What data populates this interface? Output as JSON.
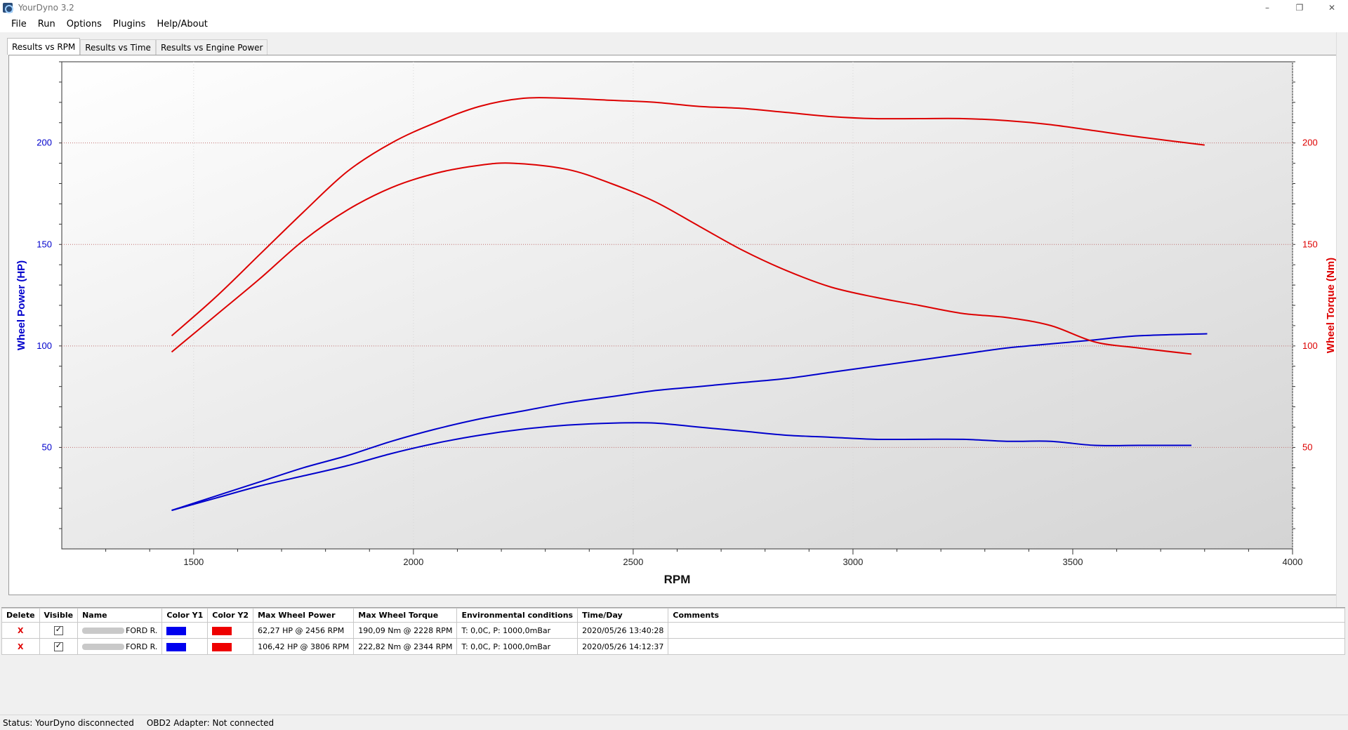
{
  "window": {
    "title": "YourDyno 3.2",
    "minimize": "–",
    "restore": "❐",
    "close": "✕"
  },
  "menu": [
    "File",
    "Run",
    "Options",
    "Plugins",
    "Help/About"
  ],
  "tabs": [
    "Results vs RPM",
    "Results vs Time",
    "Results vs Engine Power"
  ],
  "active_tab": 0,
  "colors": {
    "power": "#0000cc",
    "torque": "#dd0000",
    "grid": "#c07070"
  },
  "chart_data": {
    "type": "line",
    "xlabel": "RPM",
    "y1label": "Wheel Power (HP)",
    "y2label": "Wheel Torque (Nm)",
    "xlim": [
      1200,
      4000
    ],
    "ylim": [
      0,
      240
    ],
    "x_ticks": [
      1500,
      2000,
      2500,
      3000,
      3500,
      4000
    ],
    "y_ticks": [
      50,
      100,
      150,
      200
    ],
    "series": [
      {
        "axis": "y1",
        "color": "#0000cc",
        "x": [
          1450,
          1550,
          1650,
          1750,
          1850,
          1950,
          2050,
          2150,
          2250,
          2350,
          2456,
          2550,
          2650,
          2750,
          2850,
          2950,
          3050,
          3150,
          3250,
          3350,
          3450,
          3550,
          3650,
          3770
        ],
        "y": [
          19,
          25,
          31,
          36,
          41,
          47,
          52,
          56,
          59,
          61,
          62,
          62,
          60,
          58,
          56,
          55,
          54,
          54,
          54,
          53,
          53,
          51,
          51,
          51
        ]
      },
      {
        "axis": "y1",
        "color": "#0000cc",
        "x": [
          1450,
          1550,
          1650,
          1750,
          1850,
          1950,
          2050,
          2150,
          2250,
          2350,
          2450,
          2550,
          2650,
          2750,
          2850,
          2950,
          3050,
          3150,
          3250,
          3350,
          3450,
          3550,
          3650,
          3806
        ],
        "y": [
          19,
          26,
          33,
          40,
          46,
          53,
          59,
          64,
          68,
          72,
          75,
          78,
          80,
          82,
          84,
          87,
          90,
          93,
          96,
          99,
          101,
          103,
          105,
          106
        ]
      },
      {
        "axis": "y2",
        "color": "#dd0000",
        "x": [
          1450,
          1550,
          1650,
          1750,
          1850,
          1950,
          2050,
          2150,
          2228,
          2350,
          2450,
          2550,
          2650,
          2750,
          2850,
          2950,
          3050,
          3150,
          3250,
          3350,
          3450,
          3550,
          3650,
          3770
        ],
        "y": [
          97,
          115,
          133,
          152,
          167,
          178,
          185,
          189,
          190,
          187,
          180,
          171,
          159,
          147,
          137,
          129,
          124,
          120,
          116,
          114,
          110,
          102,
          99,
          96
        ]
      },
      {
        "axis": "y2",
        "color": "#dd0000",
        "x": [
          1450,
          1550,
          1650,
          1750,
          1850,
          1950,
          2050,
          2150,
          2250,
          2344,
          2450,
          2550,
          2650,
          2750,
          2850,
          2950,
          3050,
          3150,
          3250,
          3350,
          3450,
          3550,
          3650,
          3800
        ],
        "y": [
          105,
          124,
          145,
          166,
          186,
          200,
          210,
          218,
          222,
          222,
          221,
          220,
          218,
          217,
          215,
          213,
          212,
          212,
          212,
          211,
          209,
          206,
          203,
          199
        ]
      }
    ],
    "grid": "horizontal dotted"
  },
  "table": {
    "headers": [
      "Delete",
      "Visible",
      "Name",
      "Color Y1",
      "Color Y2",
      "Max Wheel Power",
      "Max Wheel Torque",
      "Environmental conditions",
      "Time/Day",
      "Comments"
    ],
    "rows": [
      {
        "delete": "X",
        "name": "FORD R.",
        "max_power": "62,27 HP @ 2456 RPM",
        "max_torque": "190,09 Nm @ 2228 RPM",
        "env": "T: 0,0C, P: 1000,0mBar",
        "time": "2020/05/26 13:40:28",
        "comments": "",
        "color_y1": "#0000ee",
        "color_y2": "#ee0000"
      },
      {
        "delete": "X",
        "name": "FORD R.",
        "max_power": "106,42 HP @ 3806 RPM",
        "max_torque": "222,82 Nm @ 2344 RPM",
        "env": "T: 0,0C, P: 1000,0mBar",
        "time": "2020/05/26 14:12:37",
        "comments": "",
        "color_y1": "#0000ee",
        "color_y2": "#ee0000"
      }
    ]
  },
  "status": {
    "yourdyno": "Status: YourDyno disconnected",
    "obd2": "OBD2 Adapter: Not connected"
  }
}
